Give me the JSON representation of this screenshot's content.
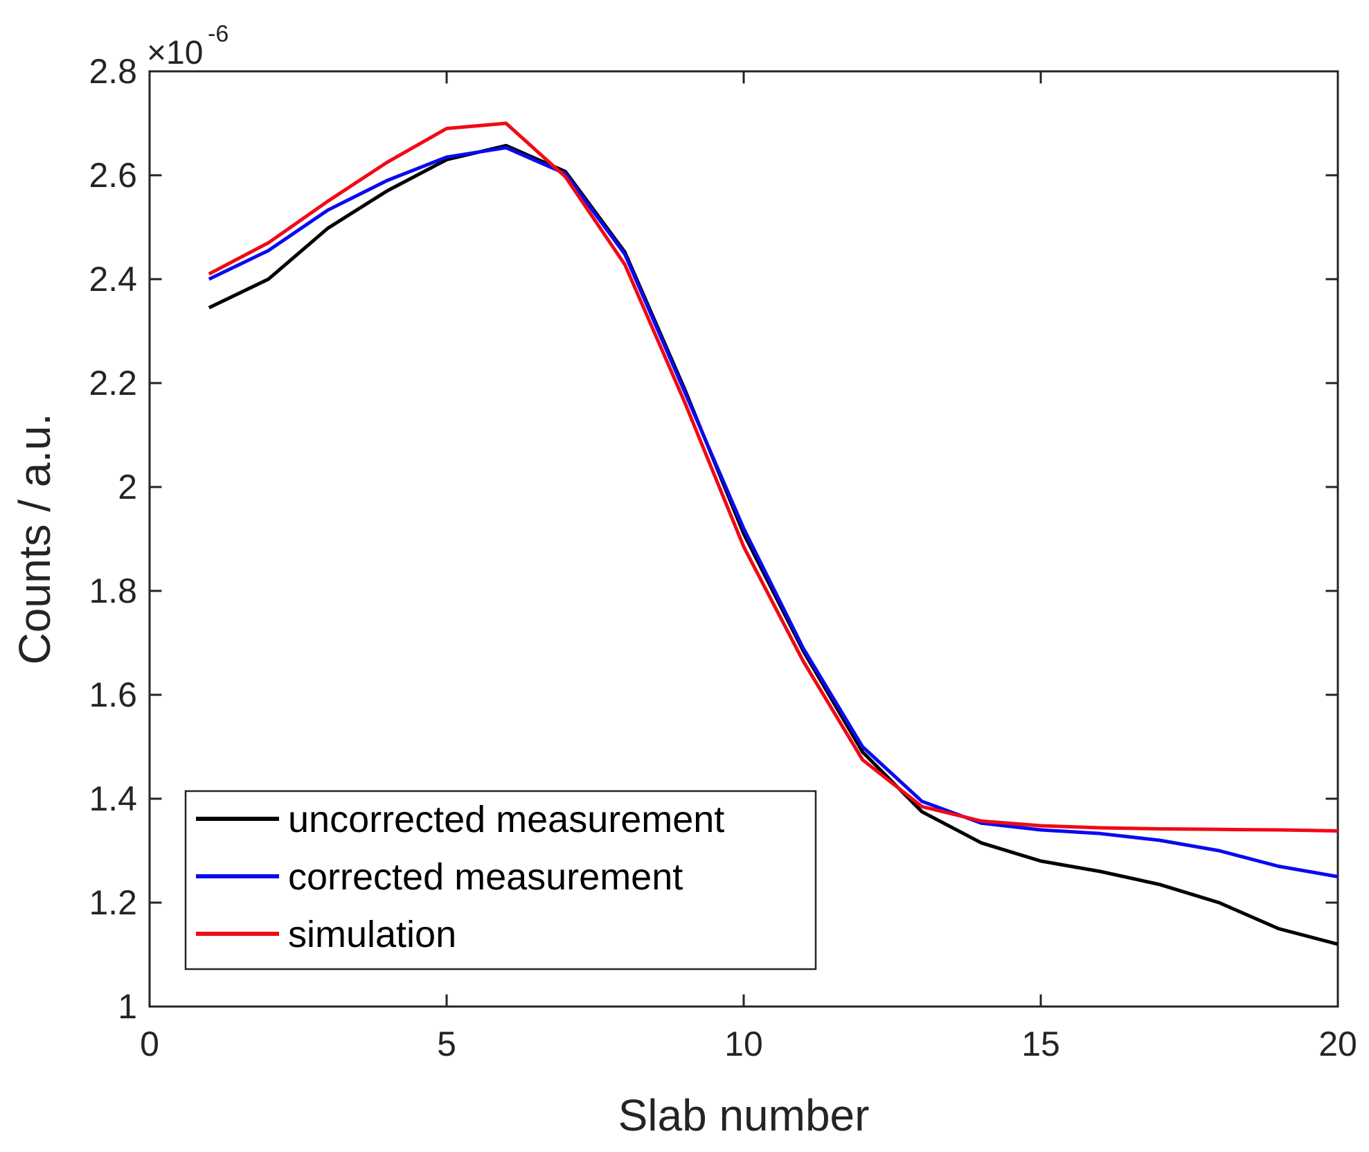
{
  "figure": {
    "background": "#ffffff",
    "axes_color": "#242424"
  },
  "chart_data": {
    "type": "line",
    "title": "",
    "xlabel": "Slab number",
    "ylabel": "Counts / a.u.",
    "y_axis_multiplier": {
      "base": "×10",
      "exponent": "-6"
    },
    "xlim": [
      0,
      20
    ],
    "ylim_in_multiplier_units": [
      1.0,
      2.8
    ],
    "grid": false,
    "legend_position": "lower-left",
    "x_ticks": [
      0,
      5,
      10,
      15,
      20
    ],
    "x_tick_labels": [
      "0",
      "5",
      "10",
      "15",
      "20"
    ],
    "y_ticks": [
      1.0,
      1.2,
      1.4,
      1.6,
      1.8,
      2.0,
      2.2,
      2.4,
      2.6,
      2.8
    ],
    "y_tick_labels": [
      "1",
      "1.2",
      "1.4",
      "1.6",
      "1.8",
      "2",
      "2.2",
      "2.4",
      "2.6",
      "2.8"
    ],
    "x": [
      1,
      2,
      3,
      4,
      5,
      6,
      7,
      8,
      9,
      10,
      11,
      12,
      13,
      14,
      15,
      16,
      17,
      18,
      19,
      20
    ],
    "series": [
      {
        "name": "uncorrected measurement",
        "color": "#000000",
        "values_x1e-6": [
          2.345,
          2.4,
          2.498,
          2.57,
          2.63,
          2.657,
          2.607,
          2.452,
          2.19,
          1.91,
          1.685,
          1.49,
          1.375,
          1.315,
          1.28,
          1.26,
          1.235,
          1.2,
          1.15,
          1.12
        ]
      },
      {
        "name": "corrected measurement",
        "color": "#0a0af0",
        "values_x1e-6": [
          2.4,
          2.455,
          2.533,
          2.59,
          2.635,
          2.653,
          2.603,
          2.448,
          2.185,
          1.92,
          1.69,
          1.5,
          1.395,
          1.353,
          1.34,
          1.333,
          1.32,
          1.3,
          1.27,
          1.25
        ]
      },
      {
        "name": "simulation",
        "color": "#f00a14",
        "values_x1e-6": [
          2.41,
          2.47,
          2.55,
          2.625,
          2.69,
          2.7,
          2.597,
          2.428,
          2.165,
          1.885,
          1.665,
          1.475,
          1.385,
          1.357,
          1.348,
          1.344,
          1.342,
          1.341,
          1.34,
          1.338
        ]
      }
    ]
  }
}
